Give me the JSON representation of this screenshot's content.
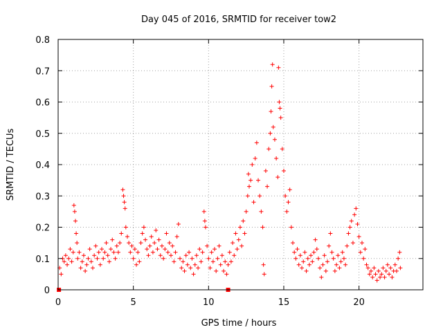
{
  "chart_data": {
    "type": "scatter",
    "title": "Day 045 of 2016, SRMTID for receiver tow2",
    "xlabel": "GPS time / hours",
    "ylabel": "SRMTID / TECUs",
    "xlim": [
      0,
      24.25
    ],
    "ylim": [
      0,
      0.8
    ],
    "xticks": [
      0,
      5,
      10,
      15,
      20
    ],
    "yticks": [
      0,
      0.1,
      0.2,
      0.3,
      0.4,
      0.5,
      0.6,
      0.7,
      0.8
    ],
    "xtick_labels": [
      "0",
      "5",
      "10",
      "15",
      "20"
    ],
    "ytick_labels": [
      "0",
      "0.1",
      "0.2",
      "0.3",
      "0.4",
      "0.5",
      "0.6",
      "0.7",
      "0.8"
    ],
    "grid": true,
    "marker": "+",
    "marker_color": "#ff0000",
    "outlier_squares": [
      {
        "x": 0.05,
        "y": 0.0
      },
      {
        "x": 11.3,
        "y": 0.0
      }
    ],
    "series": [
      {
        "name": "SRMTID",
        "points": [
          [
            0.1,
            0.07
          ],
          [
            0.2,
            0.05
          ],
          [
            0.3,
            0.1
          ],
          [
            0.4,
            0.09
          ],
          [
            0.5,
            0.11
          ],
          [
            0.6,
            0.08
          ],
          [
            0.7,
            0.1
          ],
          [
            0.8,
            0.13
          ],
          [
            0.9,
            0.09
          ],
          [
            1.0,
            0.12
          ],
          [
            1.05,
            0.27
          ],
          [
            1.1,
            0.25
          ],
          [
            1.15,
            0.22
          ],
          [
            1.2,
            0.18
          ],
          [
            1.25,
            0.15
          ],
          [
            1.3,
            0.1
          ],
          [
            1.4,
            0.12
          ],
          [
            1.5,
            0.07
          ],
          [
            1.6,
            0.09
          ],
          [
            1.7,
            0.11
          ],
          [
            1.8,
            0.06
          ],
          [
            1.9,
            0.08
          ],
          [
            2.0,
            0.1
          ],
          [
            2.1,
            0.13
          ],
          [
            2.2,
            0.09
          ],
          [
            2.3,
            0.07
          ],
          [
            2.4,
            0.11
          ],
          [
            2.5,
            0.14
          ],
          [
            2.6,
            0.1
          ],
          [
            2.7,
            0.12
          ],
          [
            2.8,
            0.08
          ],
          [
            2.9,
            0.13
          ],
          [
            3.0,
            0.1
          ],
          [
            3.1,
            0.12
          ],
          [
            3.2,
            0.15
          ],
          [
            3.3,
            0.11
          ],
          [
            3.4,
            0.09
          ],
          [
            3.5,
            0.13
          ],
          [
            3.6,
            0.16
          ],
          [
            3.7,
            0.12
          ],
          [
            3.8,
            0.1
          ],
          [
            3.9,
            0.14
          ],
          [
            4.0,
            0.12
          ],
          [
            4.1,
            0.15
          ],
          [
            4.2,
            0.18
          ],
          [
            4.3,
            0.32
          ],
          [
            4.35,
            0.3
          ],
          [
            4.4,
            0.28
          ],
          [
            4.45,
            0.26
          ],
          [
            4.5,
            0.2
          ],
          [
            4.6,
            0.17
          ],
          [
            4.7,
            0.15
          ],
          [
            4.8,
            0.12
          ],
          [
            4.9,
            0.14
          ],
          [
            5.0,
            0.1
          ],
          [
            5.1,
            0.13
          ],
          [
            5.2,
            0.08
          ],
          [
            5.3,
            0.12
          ],
          [
            5.4,
            0.09
          ],
          [
            5.5,
            0.15
          ],
          [
            5.6,
            0.18
          ],
          [
            5.7,
            0.2
          ],
          [
            5.8,
            0.16
          ],
          [
            5.9,
            0.13
          ],
          [
            6.0,
            0.11
          ],
          [
            6.1,
            0.14
          ],
          [
            6.2,
            0.17
          ],
          [
            6.3,
            0.12
          ],
          [
            6.4,
            0.15
          ],
          [
            6.5,
            0.19
          ],
          [
            6.6,
            0.13
          ],
          [
            6.7,
            0.16
          ],
          [
            6.8,
            0.11
          ],
          [
            6.9,
            0.14
          ],
          [
            7.0,
            0.1
          ],
          [
            7.1,
            0.13
          ],
          [
            7.2,
            0.18
          ],
          [
            7.3,
            0.12
          ],
          [
            7.4,
            0.15
          ],
          [
            7.5,
            0.11
          ],
          [
            7.6,
            0.14
          ],
          [
            7.7,
            0.09
          ],
          [
            7.8,
            0.12
          ],
          [
            7.9,
            0.17
          ],
          [
            8.0,
            0.21
          ],
          [
            8.1,
            0.1
          ],
          [
            8.2,
            0.07
          ],
          [
            8.3,
            0.09
          ],
          [
            8.4,
            0.06
          ],
          [
            8.5,
            0.11
          ],
          [
            8.6,
            0.08
          ],
          [
            8.7,
            0.12
          ],
          [
            8.8,
            0.07
          ],
          [
            8.9,
            0.1
          ],
          [
            9.0,
            0.05
          ],
          [
            9.1,
            0.08
          ],
          [
            9.2,
            0.11
          ],
          [
            9.3,
            0.07
          ],
          [
            9.4,
            0.13
          ],
          [
            9.5,
            0.09
          ],
          [
            9.6,
            0.12
          ],
          [
            9.7,
            0.25
          ],
          [
            9.75,
            0.22
          ],
          [
            9.8,
            0.2
          ],
          [
            9.9,
            0.14
          ],
          [
            10.0,
            0.1
          ],
          [
            10.1,
            0.07
          ],
          [
            10.2,
            0.12
          ],
          [
            10.3,
            0.09
          ],
          [
            10.4,
            0.13
          ],
          [
            10.5,
            0.06
          ],
          [
            10.6,
            0.1
          ],
          [
            10.7,
            0.14
          ],
          [
            10.8,
            0.08
          ],
          [
            10.9,
            0.11
          ],
          [
            11.0,
            0.06
          ],
          [
            11.1,
            0.09
          ],
          [
            11.2,
            0.05
          ],
          [
            11.3,
            0.08
          ],
          [
            11.4,
            0.12
          ],
          [
            11.5,
            0.09
          ],
          [
            11.6,
            0.15
          ],
          [
            11.7,
            0.11
          ],
          [
            11.8,
            0.18
          ],
          [
            11.9,
            0.13
          ],
          [
            12.0,
            0.16
          ],
          [
            12.1,
            0.2
          ],
          [
            12.2,
            0.14
          ],
          [
            12.3,
            0.22
          ],
          [
            12.4,
            0.18
          ],
          [
            12.5,
            0.25
          ],
          [
            12.6,
            0.3
          ],
          [
            12.65,
            0.37
          ],
          [
            12.7,
            0.33
          ],
          [
            12.8,
            0.35
          ],
          [
            12.9,
            0.4
          ],
          [
            13.0,
            0.28
          ],
          [
            13.1,
            0.42
          ],
          [
            13.2,
            0.47
          ],
          [
            13.3,
            0.35
          ],
          [
            13.4,
            0.3
          ],
          [
            13.5,
            0.25
          ],
          [
            13.6,
            0.2
          ],
          [
            13.65,
            0.08
          ],
          [
            13.7,
            0.05
          ],
          [
            13.8,
            0.38
          ],
          [
            13.9,
            0.33
          ],
          [
            14.0,
            0.45
          ],
          [
            14.1,
            0.5
          ],
          [
            14.15,
            0.57
          ],
          [
            14.2,
            0.65
          ],
          [
            14.25,
            0.72
          ],
          [
            14.3,
            0.52
          ],
          [
            14.4,
            0.48
          ],
          [
            14.5,
            0.42
          ],
          [
            14.6,
            0.36
          ],
          [
            14.65,
            0.71
          ],
          [
            14.7,
            0.6
          ],
          [
            14.75,
            0.58
          ],
          [
            14.8,
            0.55
          ],
          [
            14.9,
            0.45
          ],
          [
            15.0,
            0.38
          ],
          [
            15.1,
            0.3
          ],
          [
            15.2,
            0.25
          ],
          [
            15.3,
            0.28
          ],
          [
            15.4,
            0.32
          ],
          [
            15.5,
            0.2
          ],
          [
            15.6,
            0.15
          ],
          [
            15.7,
            0.12
          ],
          [
            15.8,
            0.1
          ],
          [
            15.9,
            0.13
          ],
          [
            16.0,
            0.08
          ],
          [
            16.1,
            0.11
          ],
          [
            16.2,
            0.07
          ],
          [
            16.3,
            0.09
          ],
          [
            16.4,
            0.12
          ],
          [
            16.5,
            0.06
          ],
          [
            16.6,
            0.1
          ],
          [
            16.7,
            0.08
          ],
          [
            16.8,
            0.11
          ],
          [
            16.9,
            0.09
          ],
          [
            17.0,
            0.12
          ],
          [
            17.1,
            0.16
          ],
          [
            17.2,
            0.13
          ],
          [
            17.3,
            0.1
          ],
          [
            17.4,
            0.07
          ],
          [
            17.5,
            0.04
          ],
          [
            17.6,
            0.08
          ],
          [
            17.7,
            0.11
          ],
          [
            17.8,
            0.06
          ],
          [
            17.9,
            0.09
          ],
          [
            18.0,
            0.14
          ],
          [
            18.1,
            0.18
          ],
          [
            18.2,
            0.12
          ],
          [
            18.3,
            0.1
          ],
          [
            18.4,
            0.06
          ],
          [
            18.5,
            0.08
          ],
          [
            18.6,
            0.11
          ],
          [
            18.7,
            0.07
          ],
          [
            18.8,
            0.09
          ],
          [
            18.9,
            0.12
          ],
          [
            19.0,
            0.1
          ],
          [
            19.1,
            0.08
          ],
          [
            19.2,
            0.14
          ],
          [
            19.3,
            0.18
          ],
          [
            19.4,
            0.2
          ],
          [
            19.5,
            0.22
          ],
          [
            19.6,
            0.15
          ],
          [
            19.7,
            0.24
          ],
          [
            19.8,
            0.26
          ],
          [
            19.9,
            0.21
          ],
          [
            20.0,
            0.17
          ],
          [
            20.1,
            0.12
          ],
          [
            20.2,
            0.15
          ],
          [
            20.3,
            0.1
          ],
          [
            20.4,
            0.13
          ],
          [
            20.5,
            0.08
          ],
          [
            20.6,
            0.07
          ],
          [
            20.7,
            0.05
          ],
          [
            20.8,
            0.06
          ],
          [
            20.9,
            0.04
          ],
          [
            21.0,
            0.07
          ],
          [
            21.1,
            0.05
          ],
          [
            21.2,
            0.03
          ],
          [
            21.3,
            0.06
          ],
          [
            21.4,
            0.04
          ],
          [
            21.5,
            0.05
          ],
          [
            21.6,
            0.07
          ],
          [
            21.7,
            0.04
          ],
          [
            21.8,
            0.06
          ],
          [
            21.9,
            0.08
          ],
          [
            22.0,
            0.05
          ],
          [
            22.1,
            0.07
          ],
          [
            22.2,
            0.04
          ],
          [
            22.3,
            0.06
          ],
          [
            22.4,
            0.08
          ],
          [
            22.5,
            0.06
          ],
          [
            22.6,
            0.1
          ],
          [
            22.7,
            0.12
          ],
          [
            22.75,
            0.07
          ]
        ]
      }
    ]
  }
}
